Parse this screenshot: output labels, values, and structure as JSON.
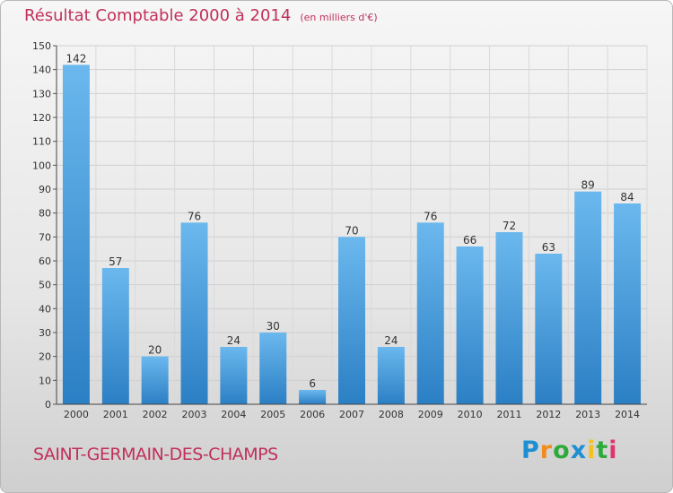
{
  "title": "Résultat Comptable 2000 à 2014",
  "subtitle": "(en milliers d'€)",
  "commune": "SAINT-GERMAIN-DES-CHAMPS",
  "brand": {
    "letters": [
      "P",
      "r",
      "o",
      "x",
      "i",
      "t",
      "i"
    ],
    "colors": [
      "#1d8fd2",
      "#f28c1e",
      "#2eaa3c",
      "#1d8fd2",
      "#f2c21e",
      "#2eaa3c",
      "#e0336f"
    ]
  },
  "colors": {
    "bar_light": "#6bb8ee",
    "bar_dark": "#2b7fc4",
    "title": "#c0305a"
  },
  "chart_data": {
    "type": "bar",
    "categories": [
      "2000",
      "2001",
      "2002",
      "2003",
      "2004",
      "2005",
      "2006",
      "2007",
      "2008",
      "2009",
      "2010",
      "2011",
      "2012",
      "2013",
      "2014"
    ],
    "values": [
      142,
      57,
      20,
      76,
      24,
      30,
      6,
      70,
      24,
      76,
      66,
      72,
      63,
      89,
      84
    ],
    "ylim": [
      0,
      150
    ],
    "yticks": [
      0,
      10,
      20,
      30,
      40,
      50,
      60,
      70,
      80,
      90,
      100,
      110,
      120,
      130,
      140,
      150
    ],
    "grid": true
  }
}
